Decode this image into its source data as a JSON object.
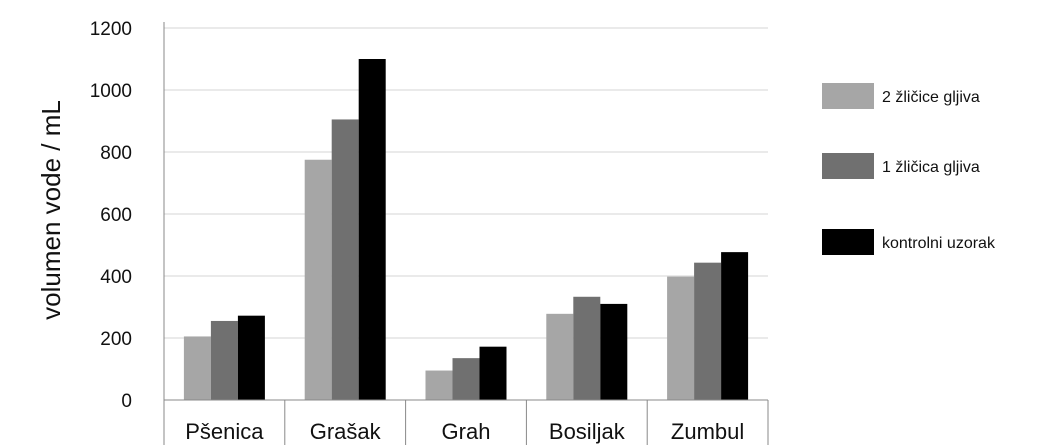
{
  "chart_data": {
    "type": "bar",
    "title": "",
    "xlabel": "",
    "ylabel": "volumen vode / mL",
    "ylim": [
      0,
      1200
    ],
    "yticks": [
      0,
      200,
      400,
      600,
      800,
      1000,
      1200
    ],
    "grid": true,
    "legend_position": "right",
    "categories": [
      "Pšenica",
      "Grašak",
      "Grah",
      "Bosiljak",
      "Zumbul"
    ],
    "series": [
      {
        "name": "2 žličice gljiva",
        "color": "#a6a6a6",
        "values": [
          205,
          775,
          95,
          278,
          398
        ]
      },
      {
        "name": "1 žličica gljiva",
        "color": "#707070",
        "values": [
          255,
          905,
          135,
          333,
          443
        ]
      },
      {
        "name": "kontrolni uzorak",
        "color": "#000000",
        "values": [
          272,
          1100,
          172,
          310,
          477
        ]
      }
    ]
  }
}
